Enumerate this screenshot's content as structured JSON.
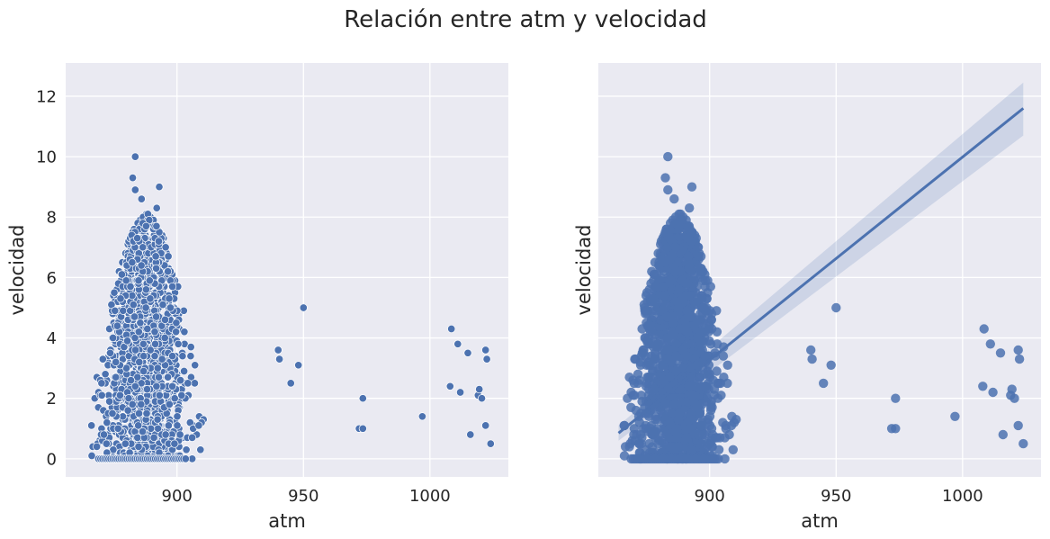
{
  "chart_data": {
    "title": "Relación entre atm y velocidad",
    "accent_color": "#4c72b0",
    "panels": [
      {
        "type": "scatter",
        "xlabel": "atm",
        "ylabel": "velocidad",
        "xlim": [
          856,
          1031
        ],
        "ylim": [
          -0.6,
          13.1
        ],
        "xticks": [
          900,
          950,
          1000
        ],
        "yticks": [
          0,
          2,
          4,
          6,
          8,
          10,
          12
        ],
        "grid": true,
        "regression": null
      },
      {
        "type": "scatter",
        "xlabel": "atm",
        "ylabel": "velocidad",
        "xlim": [
          856,
          1031
        ],
        "ylim": [
          -0.6,
          13.1
        ],
        "xticks": [
          900,
          950,
          1000
        ],
        "yticks": [
          0,
          2,
          4,
          6,
          8,
          10,
          12
        ],
        "grid": true,
        "regression": {
          "x": [
            864,
            1024
          ],
          "y": [
            0.85,
            11.6
          ],
          "ci_lower": [
            0.6,
            10.7
          ],
          "ci_upper": [
            1.1,
            12.45
          ]
        }
      }
    ],
    "cluster": {
      "x_range": [
        866,
        912
      ],
      "density_center": 888,
      "y_max": 8.1
    },
    "outliers": [
      {
        "x": 883.5,
        "y": 10.0
      },
      {
        "x": 882.5,
        "y": 9.3
      },
      {
        "x": 883.5,
        "y": 8.9
      },
      {
        "x": 893,
        "y": 9.0
      },
      {
        "x": 886,
        "y": 8.6
      },
      {
        "x": 892,
        "y": 8.3
      },
      {
        "x": 940,
        "y": 3.6
      },
      {
        "x": 940.5,
        "y": 3.3
      },
      {
        "x": 950,
        "y": 5.0
      },
      {
        "x": 945,
        "y": 2.5
      },
      {
        "x": 948,
        "y": 3.1
      },
      {
        "x": 972,
        "y": 1.0
      },
      {
        "x": 973.5,
        "y": 1.0
      },
      {
        "x": 973.5,
        "y": 2.0
      },
      {
        "x": 997,
        "y": 1.4
      },
      {
        "x": 1008,
        "y": 2.4
      },
      {
        "x": 1008.5,
        "y": 4.3
      },
      {
        "x": 1011,
        "y": 3.8
      },
      {
        "x": 1012,
        "y": 2.2
      },
      {
        "x": 1015,
        "y": 3.5
      },
      {
        "x": 1016,
        "y": 0.8
      },
      {
        "x": 1019,
        "y": 2.1
      },
      {
        "x": 1019.5,
        "y": 2.3
      },
      {
        "x": 1020.5,
        "y": 2.0
      },
      {
        "x": 1022,
        "y": 1.1
      },
      {
        "x": 1022,
        "y": 3.6
      },
      {
        "x": 1022.5,
        "y": 3.3
      },
      {
        "x": 1024,
        "y": 0.5
      }
    ]
  }
}
